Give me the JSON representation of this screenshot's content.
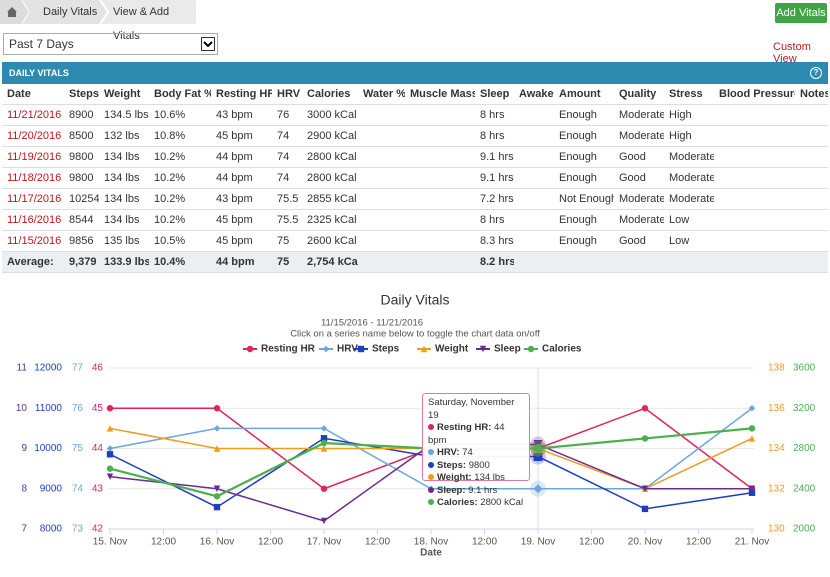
{
  "breadcrumb": {
    "items": [
      "Daily Vitals",
      "View & Add Vitals"
    ]
  },
  "button": "Add Vitals",
  "filter": {
    "selected": "Past 7 Days",
    "link": "Custom View"
  },
  "panel_title": "DAILY VITALS",
  "table": {
    "columns": [
      "Date",
      "Steps",
      "Weight",
      "Body Fat %",
      "Resting HR",
      "HRV",
      "Calories",
      "Water %",
      "Muscle Mass",
      "Sleep",
      "Awake",
      "Amount",
      "Quality",
      "Stress",
      "Blood Pressure",
      "Notes"
    ],
    "rows": [
      [
        "11/21/2016",
        "8900",
        "134.5 lbs",
        "10.6%",
        "43 bpm",
        "76",
        "3000 kCal",
        null,
        null,
        "8 hrs",
        null,
        "Enough",
        "Moderate",
        "High",
        null,
        null
      ],
      [
        "11/20/2016",
        "8500",
        "132 lbs",
        "10.8%",
        "45 bpm",
        "74",
        "2900 kCal",
        null,
        null,
        "8 hrs",
        null,
        "Enough",
        "Moderate",
        "High",
        null,
        null
      ],
      [
        "11/19/2016",
        "9800",
        "134 lbs",
        "10.2%",
        "44 bpm",
        "74",
        "2800 kCal",
        null,
        null,
        "9.1 hrs",
        null,
        "Enough",
        "Good",
        "Moderate",
        null,
        null
      ],
      [
        "11/18/2016",
        "9800",
        "134 lbs",
        "10.2%",
        "44 bpm",
        "74",
        "2800 kCal",
        null,
        null,
        "9.1 hrs",
        null,
        "Enough",
        "Good",
        "Moderate",
        null,
        null
      ],
      [
        "11/17/2016",
        "10254",
        "134 lbs",
        "10.2%",
        "43 bpm",
        "75.5",
        "2855 kCal",
        null,
        null,
        "7.2 hrs",
        null,
        "Not Enough",
        "Moderate",
        "Moderate",
        null,
        null
      ],
      [
        "11/16/2016",
        "8544",
        "134 lbs",
        "10.2%",
        "45 bpm",
        "75.5",
        "2325 kCal",
        null,
        null,
        "8 hrs",
        null,
        "Enough",
        "Moderate",
        "Low",
        null,
        null
      ],
      [
        "11/15/2016",
        "9856",
        "135 lbs",
        "10.5%",
        "45 bpm",
        "75",
        "2600 kCal",
        null,
        null,
        "8.3 hrs",
        null,
        "Enough",
        "Good",
        "Low",
        null,
        null
      ]
    ],
    "footer": [
      "Average:",
      "9,379",
      "133.9 lbs",
      "10.4%",
      "44 bpm",
      "75",
      "2,754 kCal",
      null,
      null,
      "8.2 hrs",
      null,
      null,
      null,
      null,
      null,
      null
    ]
  },
  "chart_data": {
    "type": "line",
    "title": "Daily Vitals",
    "subtitle": "11/15/2016 - 11/21/2016",
    "note": "Click on a series name below to toggle the chart data on/off",
    "x_label": "Date",
    "categories": [
      "15. Nov",
      "16. Nov",
      "17. Nov",
      "18. Nov",
      "19. Nov",
      "20. Nov",
      "21. Nov"
    ],
    "half_labels": [
      "12:00",
      "12:00",
      "12:00",
      "12:00",
      "12:00",
      "12:00"
    ],
    "grid": true,
    "axes": [
      {
        "side": "left",
        "color": "#4a3a9c",
        "lim": [
          7,
          11
        ],
        "ticks": [
          7,
          8,
          9,
          10,
          11
        ]
      },
      {
        "side": "left",
        "color": "#1f3fbf",
        "lim": [
          8000,
          12000
        ],
        "ticks": [
          8000,
          9000,
          10000,
          11000,
          12000
        ]
      },
      {
        "side": "left",
        "color": "#6ea6dc",
        "lim": [
          73,
          77
        ],
        "ticks": [
          73,
          74,
          75,
          76,
          77
        ]
      },
      {
        "side": "left",
        "color": "#e0245e",
        "lim": [
          42,
          46
        ],
        "ticks": [
          42,
          43,
          44,
          45,
          46
        ]
      },
      {
        "side": "right",
        "color": "#f29b1d",
        "lim": [
          130,
          138
        ],
        "ticks": [
          130,
          132,
          134,
          136,
          138
        ]
      },
      {
        "side": "right",
        "color": "#4caf50",
        "lim": [
          2000,
          3600
        ],
        "ticks": [
          2000,
          2400,
          2800,
          3200,
          3600
        ]
      }
    ],
    "series": [
      {
        "name": "Resting HR",
        "color": "#e0245e",
        "marker": "circle",
        "axis": 3,
        "values": [
          45,
          45,
          43,
          44,
          44,
          45,
          43
        ]
      },
      {
        "name": "HRV",
        "color": "#6ea6dc",
        "marker": "diamond",
        "axis": 2,
        "values": [
          75,
          75.5,
          75.5,
          74,
          74,
          74,
          76
        ]
      },
      {
        "name": "Steps",
        "color": "#1f3fbf",
        "marker": "square",
        "axis": 1,
        "values": [
          9856,
          8544,
          10254,
          9800,
          9800,
          8500,
          8900
        ]
      },
      {
        "name": "Weight",
        "color": "#f29b1d",
        "marker": "triangle",
        "axis": 4,
        "values": [
          135,
          134,
          134,
          134,
          134,
          132,
          134.5
        ]
      },
      {
        "name": "Sleep",
        "color": "#6b2a8f",
        "marker": "triangle-down",
        "axis": 0,
        "values": [
          8.3,
          8,
          7.2,
          9.1,
          9.1,
          8,
          8
        ]
      },
      {
        "name": "Calories",
        "color": "#4caf50",
        "marker": "circle",
        "axis": 5,
        "values": [
          2600,
          2325,
          2855,
          2800,
          2800,
          2900,
          3000
        ]
      }
    ],
    "tooltip": {
      "title": "Saturday, November 19",
      "items": [
        {
          "label": "Resting HR:",
          "value": "44 bpm"
        },
        {
          "label": "HRV:",
          "value": "74"
        },
        {
          "label": "Steps:",
          "value": "9800"
        },
        {
          "label": "Weight:",
          "value": "134 lbs"
        },
        {
          "label": "Sleep:",
          "value": "9.1 hrs"
        },
        {
          "label": "Calories:",
          "value": "2800 kCal"
        }
      ]
    }
  }
}
